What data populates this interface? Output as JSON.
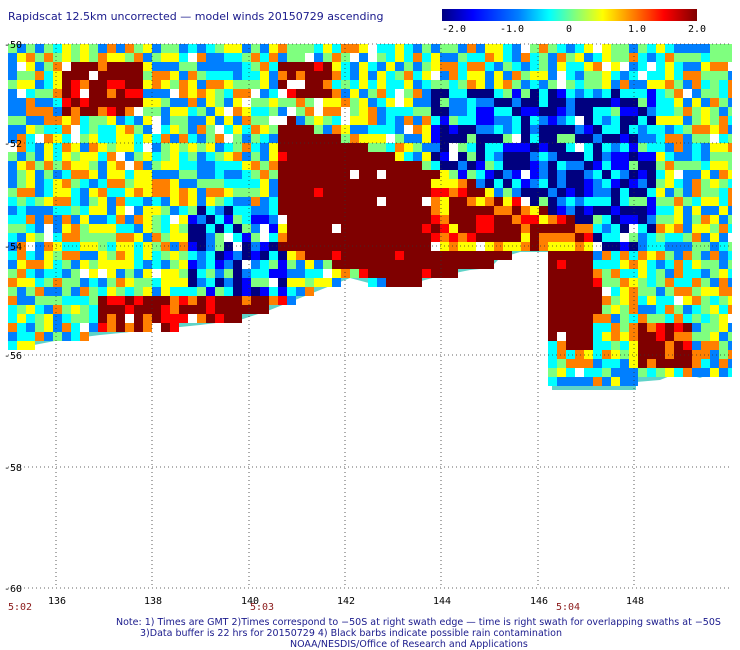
{
  "title": "Rapidscat 12.5km uncorrected — model winds 20150729 ascending",
  "colorbar": {
    "ticks": [
      "-2.0",
      "-1.0",
      "0",
      "1.0",
      "2.0"
    ],
    "range": [
      -2.0,
      2.0
    ],
    "colors": [
      "#00007f",
      "#0000ff",
      "#007fff",
      "#00ffff",
      "#7fff7f",
      "#ffff00",
      "#ff7f00",
      "#ff0000",
      "#7f0000"
    ]
  },
  "map": {
    "lat_labels": [
      "-50",
      "-52",
      "-54",
      "-56",
      "-58",
      "-60"
    ],
    "lon_labels": [
      "136",
      "138",
      "140",
      "142",
      "144",
      "146",
      "148"
    ],
    "lat_range": [
      -60,
      -50
    ],
    "lon_range": [
      135,
      150
    ],
    "grid": "dotted"
  },
  "times": [
    "5:02",
    "5:03",
    "5:04"
  ],
  "notes": [
    "Note: 1) Times are GMT 2)Times correspond to −50S at right swath edge — time is right swath for overlapping swaths at −50S",
    "3)Data buffer is 22 hrs for 20150729 4) Black barbs indicate possible rain contamination",
    "NOAA/NESDIS/Office of Research and Applications"
  ]
}
